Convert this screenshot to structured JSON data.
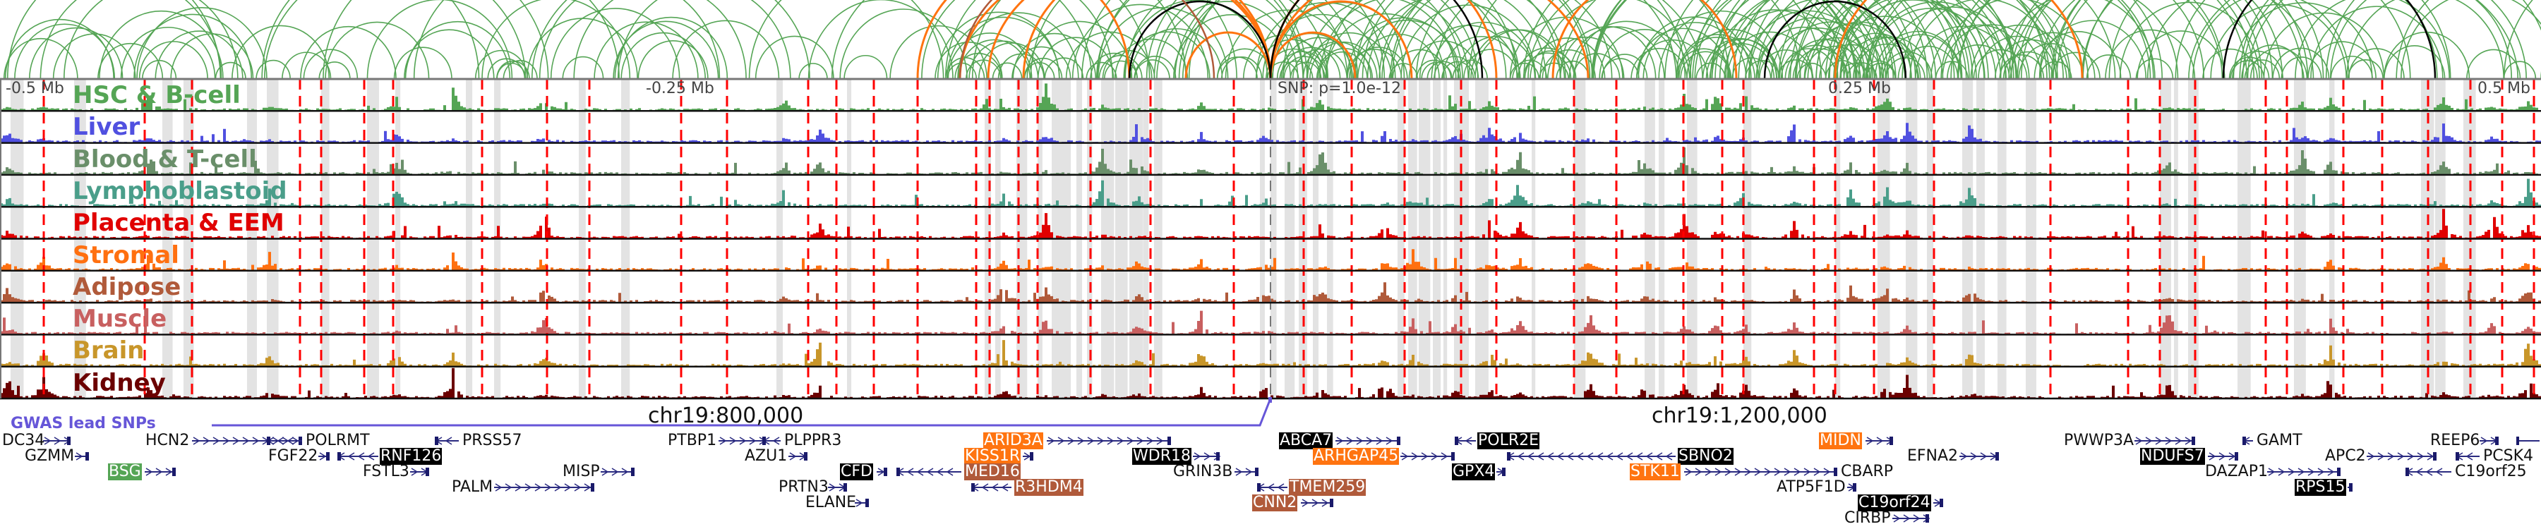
{
  "axis_labels": {
    "left_far": "-0.5 Mb",
    "left_near": "-0.25 Mb",
    "snp": "SNP: p=1.0e-12",
    "right_near": "0.25 Mb",
    "right_far": "0.5 Mb"
  },
  "tracks": [
    {
      "label": "HSC & B-cell",
      "color": "#55a555"
    },
    {
      "label": "Liver",
      "color": "#5050e0"
    },
    {
      "label": "Blood & T-cell",
      "color": "#6a8f6a"
    },
    {
      "label": "Lymphoblastoid",
      "color": "#4a9e8a"
    },
    {
      "label": "Placenta & EEM",
      "color": "#e00000"
    },
    {
      "label": "Stromal",
      "color": "#ff7010"
    },
    {
      "label": "Adipose",
      "color": "#b05a3a"
    },
    {
      "label": "Muscle",
      "color": "#c86060"
    },
    {
      "label": "Brain",
      "color": "#c8962a"
    },
    {
      "label": "Kidney",
      "color": "#6b0000"
    }
  ],
  "gwas": {
    "label": "GWAS lead SNPs",
    "color": "#6656d8"
  },
  "chromosome_labels": [
    "chr19:800,000",
    "chr19:1,200,000"
  ],
  "colors": {
    "green": "#55a555",
    "orange": "#ff7410",
    "brown": "#b05a3a",
    "black": "#000000",
    "gene_line": "#2a2a80",
    "snp_line": "#ff0000",
    "shade": "#e3e3e3"
  },
  "genes": [
    {
      "name": "DC34",
      "strand": "+",
      "highlight": null
    },
    {
      "name": "GZMM",
      "strand": "+",
      "highlight": null
    },
    {
      "name": "BSG",
      "strand": "+",
      "highlight": "#55a555"
    },
    {
      "name": "HCN2",
      "strand": "+",
      "highlight": null
    },
    {
      "name": "POLRMT",
      "strand": "-",
      "highlight": null
    },
    {
      "name": "FGF22",
      "strand": "+",
      "highlight": null
    },
    {
      "name": "RNF126",
      "strand": "-",
      "highlight": "#000000"
    },
    {
      "name": "FSTL3",
      "strand": "+",
      "highlight": null
    },
    {
      "name": "PALM",
      "strand": "+",
      "highlight": null
    },
    {
      "name": "PRSS57",
      "strand": "-",
      "highlight": null
    },
    {
      "name": "MISP",
      "strand": "+",
      "highlight": null
    },
    {
      "name": "PTBP1",
      "strand": "+",
      "highlight": null
    },
    {
      "name": "PLPPR3",
      "strand": "-",
      "highlight": null
    },
    {
      "name": "AZU1",
      "strand": "+",
      "highlight": null
    },
    {
      "name": "CFD",
      "strand": "+",
      "highlight": "#000000"
    },
    {
      "name": "PRTN3",
      "strand": "+",
      "highlight": null
    },
    {
      "name": "ELANE",
      "strand": "+",
      "highlight": null
    },
    {
      "name": "ARID3A",
      "strand": "+",
      "highlight": "#ff7410"
    },
    {
      "name": "KISS1R",
      "strand": "+",
      "highlight": "#ff7410"
    },
    {
      "name": "MED16",
      "strand": "-",
      "highlight": "#b05a3a"
    },
    {
      "name": "R3HDM4",
      "strand": "-",
      "highlight": "#b05a3a"
    },
    {
      "name": "WDR18",
      "strand": "+",
      "highlight": "#000000"
    },
    {
      "name": "GRIN3B",
      "strand": "+",
      "highlight": null
    },
    {
      "name": "ABCA7",
      "strand": "+",
      "highlight": "#000000"
    },
    {
      "name": "ARHGAP45",
      "strand": "+",
      "highlight": "#ff7410"
    },
    {
      "name": "TMEM259",
      "strand": "-",
      "highlight": "#b05a3a"
    },
    {
      "name": "CNN2",
      "strand": "+",
      "highlight": "#b05a3a"
    },
    {
      "name": "POLR2E",
      "strand": "-",
      "highlight": "#000000"
    },
    {
      "name": "GPX4",
      "strand": "+",
      "highlight": "#000000"
    },
    {
      "name": "SBNO2",
      "strand": "-",
      "highlight": "#000000"
    },
    {
      "name": "STK11",
      "strand": "+",
      "highlight": "#ff7410"
    },
    {
      "name": "MIDN",
      "strand": "+",
      "highlight": "#ff7410"
    },
    {
      "name": "CBARP",
      "strand": "-",
      "highlight": null
    },
    {
      "name": "ATP5F1D",
      "strand": "+",
      "highlight": null
    },
    {
      "name": "C19orf24",
      "strand": "+",
      "highlight": "#000000"
    },
    {
      "name": "CIRBP",
      "strand": "+",
      "highlight": null
    },
    {
      "name": "EFNA2",
      "strand": "+",
      "highlight": null
    },
    {
      "name": "PWWP3A",
      "strand": "+",
      "highlight": null
    },
    {
      "name": "NDUFS7",
      "strand": "+",
      "highlight": "#000000"
    },
    {
      "name": "DAZAP1",
      "strand": "+",
      "highlight": null
    },
    {
      "name": "RPS15",
      "strand": "+",
      "highlight": "#000000"
    },
    {
      "name": "GAMT",
      "strand": "-",
      "highlight": null
    },
    {
      "name": "APC2",
      "strand": "+",
      "highlight": null
    },
    {
      "name": "REEP6",
      "strand": "+",
      "highlight": null
    },
    {
      "name": "PCSK4",
      "strand": "-",
      "highlight": null
    },
    {
      "name": "C19orf25",
      "strand": "-",
      "highlight": null
    }
  ]
}
